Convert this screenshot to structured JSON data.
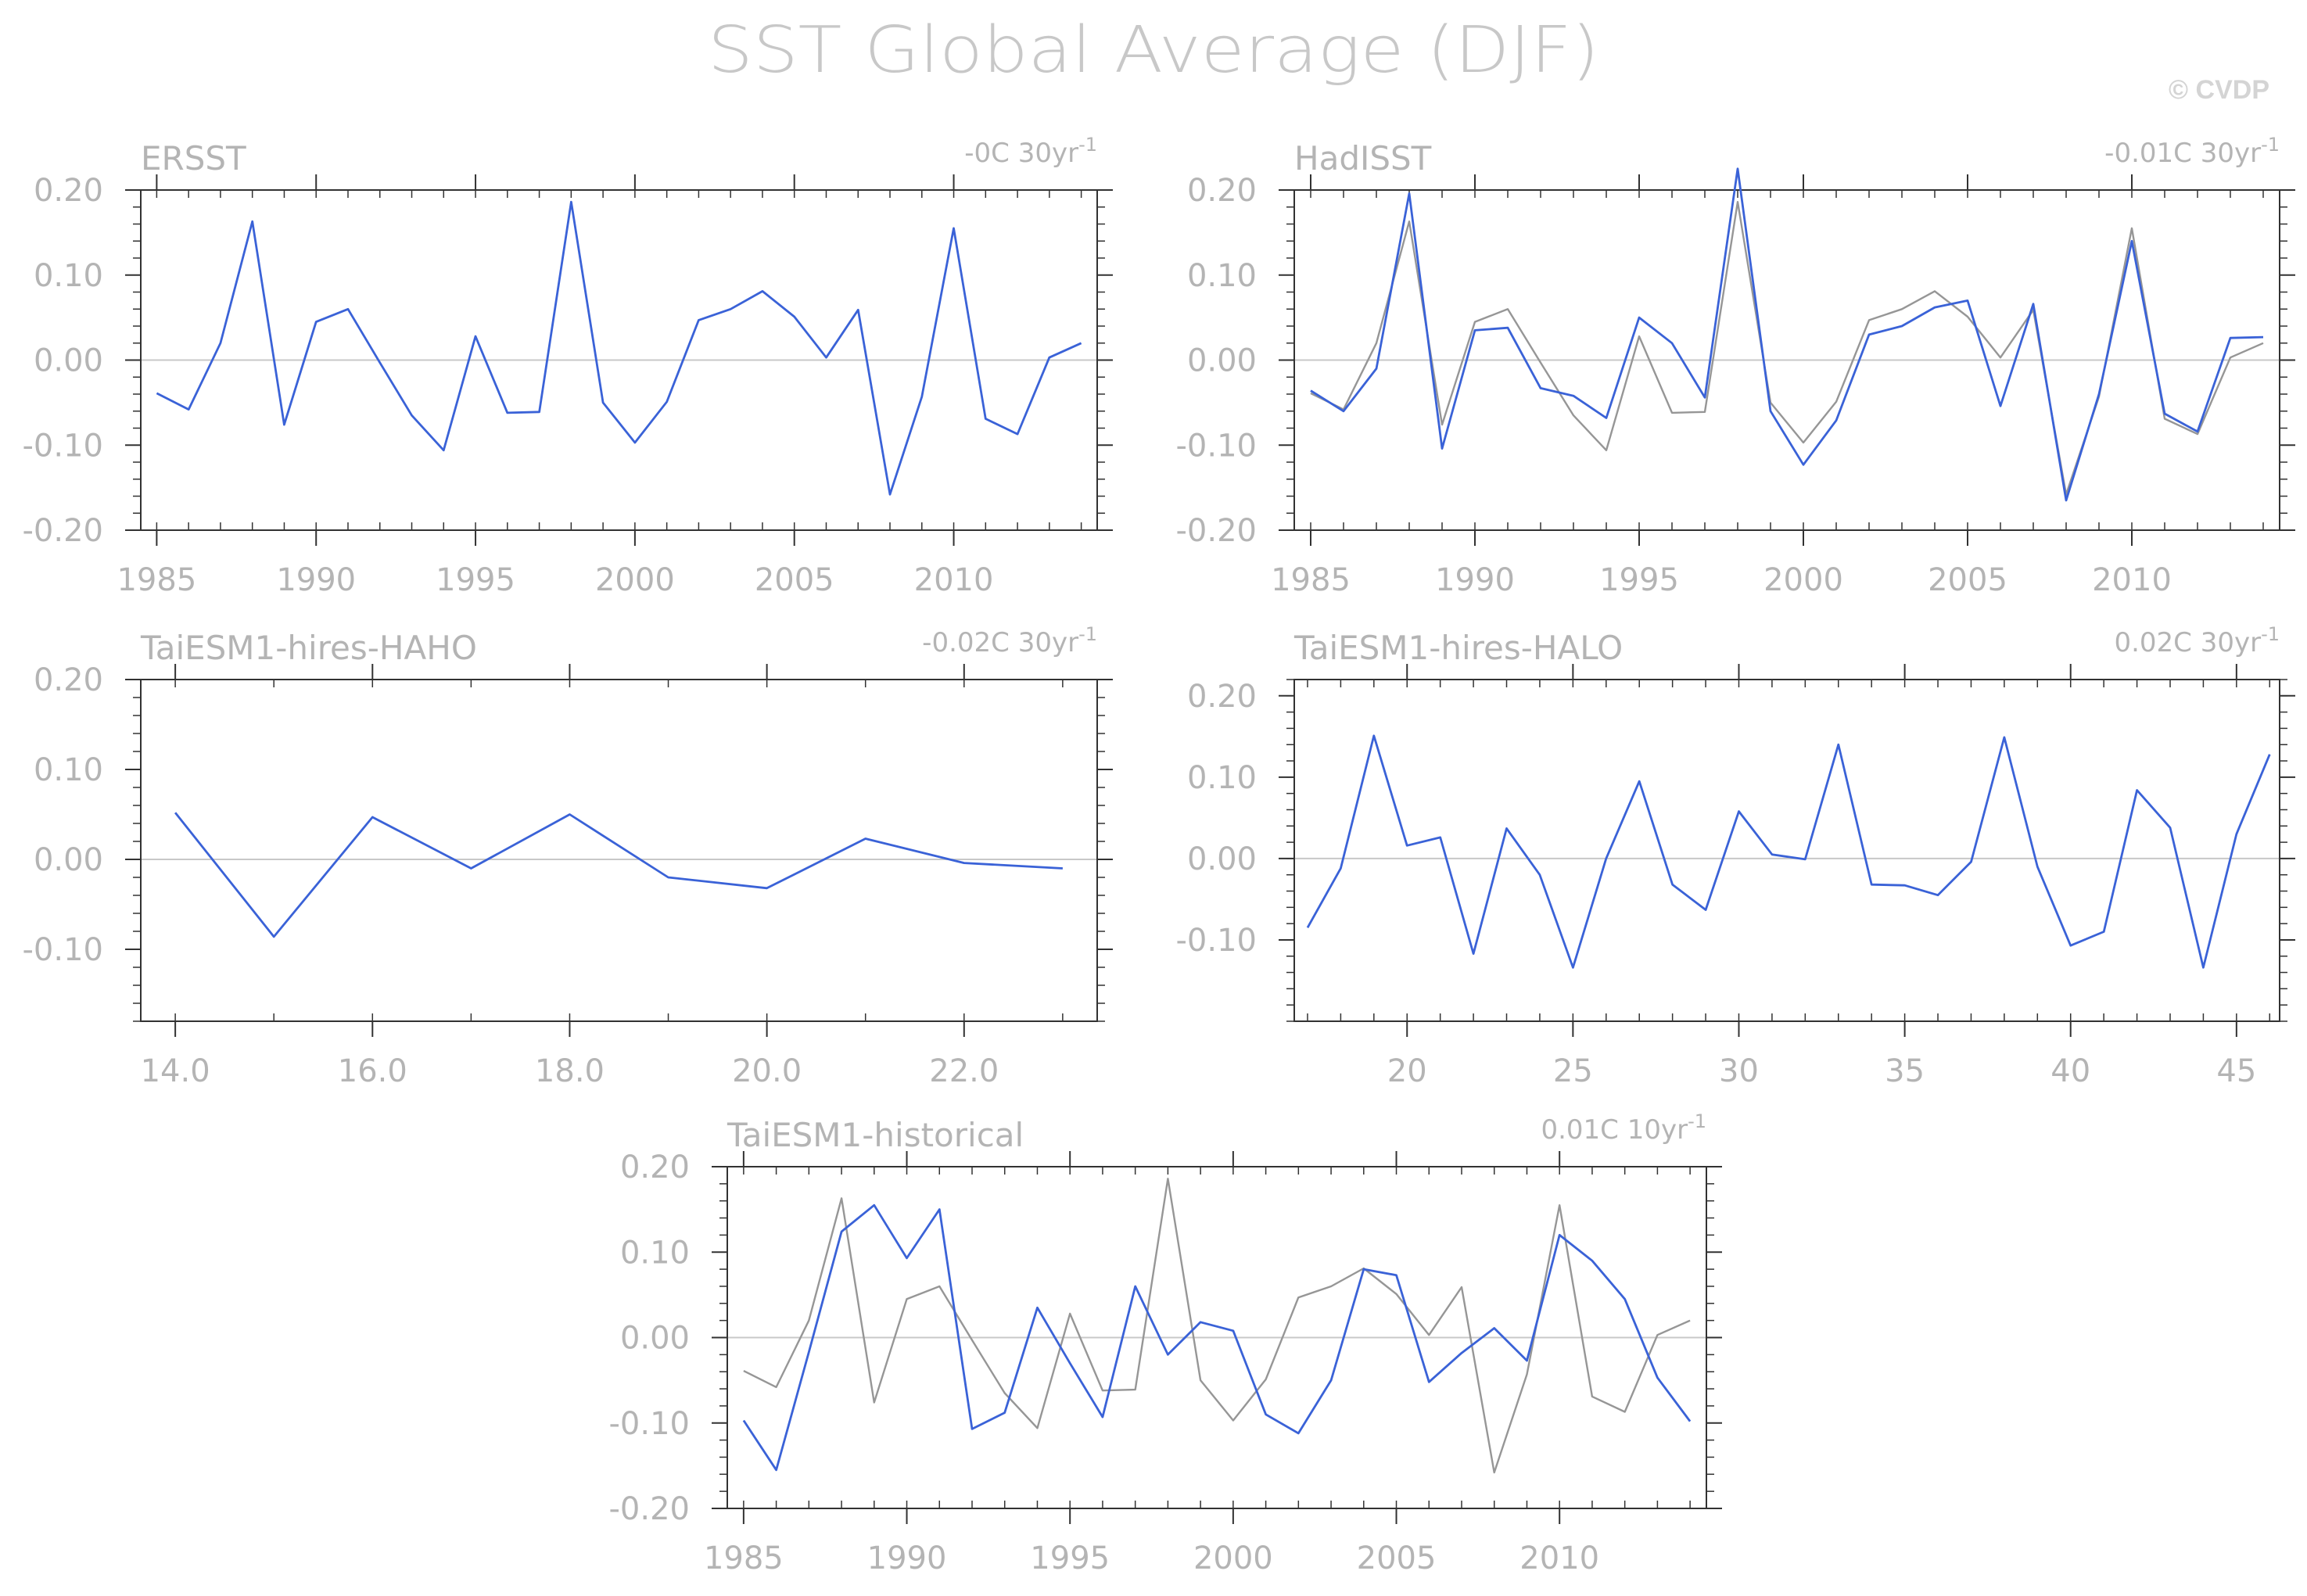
{
  "figure": {
    "title": "SST Global Average (DJF)",
    "watermark": "© CVDP"
  },
  "colors": {
    "model_line": "#3a62d7",
    "obs_line": "#969696",
    "zero_line": "#c8c8c8",
    "axis": "#323232",
    "text": "#b4b4b4"
  },
  "chart_data": [
    {
      "type": "line",
      "title": "ERSST",
      "trend_text": "-0C 30yr",
      "trend_sup": "-1",
      "xlim": [
        1984.5,
        2014.5
      ],
      "ylim": [
        -0.2,
        0.2
      ],
      "xticks": [
        1985,
        1990,
        1995,
        2000,
        2005,
        2010
      ],
      "xtick_labels": [
        "1985",
        "1990",
        "1995",
        "2000",
        "2005",
        "2010"
      ],
      "yticks": [
        -0.2,
        -0.1,
        0.0,
        0.1,
        0.2
      ],
      "ytick_labels": [
        "-0.20",
        "-0.10",
        "0.00",
        "0.10",
        "0.20"
      ],
      "series": [
        {
          "color": "#3a62d7",
          "x": [
            1985,
            1986,
            1987,
            1988,
            1989,
            1990,
            1991,
            1992,
            1993,
            1994,
            1995,
            1996,
            1997,
            1998,
            1999,
            2000,
            2001,
            2002,
            2003,
            2004,
            2005,
            2006,
            2007,
            2008,
            2009,
            2010,
            2011,
            2012,
            2013,
            2014
          ],
          "y": [
            -0.039,
            -0.058,
            0.02,
            0.163,
            -0.076,
            0.045,
            0.06,
            -0.003,
            -0.065,
            -0.106,
            0.028,
            -0.062,
            -0.061,
            0.186,
            -0.05,
            -0.097,
            -0.049,
            0.047,
            0.06,
            0.081,
            0.051,
            0.003,
            0.059,
            -0.158,
            -0.043,
            0.155,
            -0.069,
            -0.087,
            0.003,
            0.02
          ]
        }
      ]
    },
    {
      "type": "line",
      "title": "HadISST",
      "trend_text": "-0.01C 30yr",
      "trend_sup": "-1",
      "xlim": [
        1984.5,
        2014.5
      ],
      "ylim": [
        -0.2,
        0.2
      ],
      "xticks": [
        1985,
        1990,
        1995,
        2000,
        2005,
        2010
      ],
      "xtick_labels": [
        "1985",
        "1990",
        "1995",
        "2000",
        "2005",
        "2010"
      ],
      "yticks": [
        -0.2,
        -0.1,
        0.0,
        0.1,
        0.2
      ],
      "ytick_labels": [
        "-0.20",
        "-0.10",
        "0.00",
        "0.10",
        "0.20"
      ],
      "series": [
        {
          "color": "#969696",
          "x": [
            1985,
            1986,
            1987,
            1988,
            1989,
            1990,
            1991,
            1992,
            1993,
            1994,
            1995,
            1996,
            1997,
            1998,
            1999,
            2000,
            2001,
            2002,
            2003,
            2004,
            2005,
            2006,
            2007,
            2008,
            2009,
            2010,
            2011,
            2012,
            2013,
            2014
          ],
          "y": [
            -0.039,
            -0.058,
            0.02,
            0.163,
            -0.076,
            0.045,
            0.06,
            -0.003,
            -0.065,
            -0.106,
            0.028,
            -0.062,
            -0.061,
            0.186,
            -0.05,
            -0.097,
            -0.049,
            0.047,
            0.06,
            0.081,
            0.051,
            0.003,
            0.059,
            -0.158,
            -0.043,
            0.155,
            -0.069,
            -0.087,
            0.003,
            0.02
          ]
        },
        {
          "color": "#3a62d7",
          "x": [
            1985,
            1986,
            1987,
            1988,
            1989,
            1990,
            1991,
            1992,
            1993,
            1994,
            1995,
            1996,
            1997,
            1998,
            1999,
            2000,
            2001,
            2002,
            2003,
            2004,
            2005,
            2006,
            2007,
            2008,
            2009,
            2010,
            2011,
            2012,
            2013,
            2014
          ],
          "y": [
            -0.036,
            -0.06,
            -0.01,
            0.196,
            -0.104,
            0.035,
            0.038,
            -0.033,
            -0.042,
            -0.068,
            0.05,
            0.02,
            -0.044,
            0.225,
            -0.06,
            -0.123,
            -0.071,
            0.03,
            0.04,
            0.062,
            0.07,
            -0.054,
            0.066,
            -0.165,
            -0.04,
            0.14,
            -0.063,
            -0.084,
            0.026,
            0.027
          ]
        }
      ]
    },
    {
      "type": "line",
      "title": "TaiESM1-hires-HAHO",
      "trend_text": "-0.02C 30yr",
      "trend_sup": "-1",
      "xlim": [
        13.65,
        23.35
      ],
      "ylim": [
        -0.18,
        0.2
      ],
      "xticks": [
        14,
        16,
        18,
        20,
        22
      ],
      "xtick_labels": [
        "14.0",
        "16.0",
        "18.0",
        "20.0",
        "22.0"
      ],
      "yticks": [
        -0.1,
        0.0,
        0.1,
        0.2
      ],
      "ytick_labels": [
        "-0.10",
        "0.00",
        "0.10",
        "0.20"
      ],
      "series": [
        {
          "color": "#3a62d7",
          "x": [
            14,
            15,
            16,
            17,
            18,
            19,
            20,
            21,
            22,
            23
          ],
          "y": [
            0.052,
            -0.086,
            0.047,
            -0.01,
            0.05,
            -0.02,
            -0.032,
            0.023,
            -0.004,
            -0.01
          ]
        }
      ]
    },
    {
      "type": "line",
      "title": "TaiESM1-hires-HALO",
      "trend_text": "0.02C 30yr",
      "trend_sup": "-1",
      "xlim": [
        16.6,
        46.3
      ],
      "ylim": [
        -0.2,
        0.22
      ],
      "xticks": [
        20,
        25,
        30,
        35,
        40,
        45
      ],
      "xtick_labels": [
        "20",
        "25",
        "30",
        "35",
        "40",
        "45"
      ],
      "yticks": [
        -0.1,
        0.0,
        0.1,
        0.2
      ],
      "ytick_labels": [
        "-0.10",
        "0.00",
        "0.10",
        "0.20"
      ],
      "series": [
        {
          "color": "#3a62d7",
          "x": [
            17,
            18,
            19,
            20,
            21,
            22,
            23,
            24,
            25,
            26,
            27,
            28,
            29,
            30,
            31,
            32,
            33,
            34,
            35,
            36,
            37,
            38,
            39,
            40,
            41,
            42,
            43,
            44,
            45,
            46
          ],
          "y": [
            -0.085,
            -0.012,
            0.151,
            0.016,
            0.026,
            -0.117,
            0.037,
            -0.02,
            -0.134,
            0.0,
            0.095,
            -0.032,
            -0.063,
            0.058,
            0.005,
            -0.001,
            0.14,
            -0.032,
            -0.033,
            -0.045,
            -0.004,
            0.149,
            -0.01,
            -0.107,
            -0.09,
            0.084,
            0.038,
            -0.134,
            0.03,
            0.128
          ]
        }
      ]
    },
    {
      "type": "line",
      "title": "TaiESM1-historical",
      "trend_text": "0.01C 10yr",
      "trend_sup": "-1",
      "xlim": [
        1984.5,
        2014.5
      ],
      "ylim": [
        -0.2,
        0.2
      ],
      "xticks": [
        1985,
        1990,
        1995,
        2000,
        2005,
        2010
      ],
      "xtick_labels": [
        "1985",
        "1990",
        "1995",
        "2000",
        "2005",
        "2010"
      ],
      "yticks": [
        -0.2,
        -0.1,
        0.0,
        0.1,
        0.2
      ],
      "ytick_labels": [
        "-0.20",
        "-0.10",
        "0.00",
        "0.10",
        "0.20"
      ],
      "series": [
        {
          "color": "#969696",
          "x": [
            1985,
            1986,
            1987,
            1988,
            1989,
            1990,
            1991,
            1992,
            1993,
            1994,
            1995,
            1996,
            1997,
            1998,
            1999,
            2000,
            2001,
            2002,
            2003,
            2004,
            2005,
            2006,
            2007,
            2008,
            2009,
            2010,
            2011,
            2012,
            2013,
            2014
          ],
          "y": [
            -0.039,
            -0.058,
            0.02,
            0.163,
            -0.076,
            0.045,
            0.06,
            -0.003,
            -0.065,
            -0.106,
            0.028,
            -0.062,
            -0.061,
            0.186,
            -0.05,
            -0.097,
            -0.049,
            0.047,
            0.06,
            0.081,
            0.051,
            0.003,
            0.059,
            -0.158,
            -0.043,
            0.155,
            -0.069,
            -0.087,
            0.003,
            0.02
          ]
        },
        {
          "color": "#3a62d7",
          "x": [
            1985,
            1986,
            1987,
            1988,
            1989,
            1990,
            1991,
            1992,
            1993,
            1994,
            1995,
            1996,
            1997,
            1998,
            1999,
            2000,
            2001,
            2002,
            2003,
            2004,
            2005,
            2006,
            2007,
            2008,
            2009,
            2010,
            2011,
            2012,
            2013,
            2014
          ],
          "y": [
            -0.097,
            -0.155,
            -0.017,
            0.124,
            0.155,
            0.093,
            0.15,
            -0.107,
            -0.088,
            0.035,
            -0.03,
            -0.093,
            0.06,
            -0.02,
            0.018,
            0.008,
            -0.09,
            -0.112,
            -0.05,
            0.08,
            0.073,
            -0.052,
            -0.018,
            0.011,
            -0.027,
            0.12,
            0.09,
            0.045,
            -0.047,
            -0.098
          ]
        }
      ]
    }
  ]
}
